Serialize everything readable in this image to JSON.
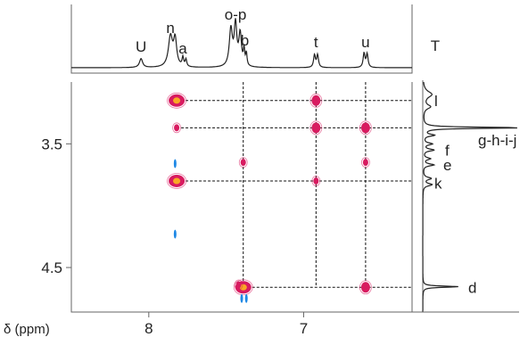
{
  "chart_data": {
    "type": "2D NMR spectrum",
    "axis_title": "δ (ppm)",
    "x_axis": {
      "ticks": [
        "8",
        "7"
      ],
      "tick_values": [
        8.0,
        7.0
      ],
      "range": [
        8.5,
        6.3
      ],
      "reversed": true
    },
    "y_axis": {
      "ticks": [
        "3.5",
        "4.5"
      ],
      "tick_values": [
        3.5,
        4.5
      ],
      "range": [
        3.0,
        4.86
      ],
      "reversed": true
    },
    "top_projection_labels": [
      {
        "text": "U",
        "ppm": 8.05
      },
      {
        "text": "n",
        "ppm": 7.86
      },
      {
        "text": "a",
        "ppm": 7.78
      },
      {
        "text": "o-p",
        "ppm": 7.44
      },
      {
        "text": "b",
        "ppm": 7.38
      },
      {
        "text": "t",
        "ppm": 6.92
      },
      {
        "text": "u",
        "ppm": 6.6
      },
      {
        "text": "T",
        "ppm": 6.15
      }
    ],
    "right_projection_labels": [
      {
        "text": "l",
        "ppm": 3.15
      },
      {
        "text": "g-h-i-j",
        "ppm": 3.47
      },
      {
        "text": "f",
        "ppm": 3.55
      },
      {
        "text": "e",
        "ppm": 3.67
      },
      {
        "text": "k",
        "ppm": 3.82
      },
      {
        "text": "d",
        "ppm": 4.66
      }
    ],
    "cross_peaks": [
      {
        "x": 7.82,
        "y": 3.15,
        "intensity": "strong"
      },
      {
        "x": 7.82,
        "y": 3.37,
        "intensity": "weak"
      },
      {
        "x": 7.82,
        "y": 3.8,
        "intensity": "strong"
      },
      {
        "x": 6.92,
        "y": 3.15,
        "intensity": "medium"
      },
      {
        "x": 6.92,
        "y": 3.37,
        "intensity": "medium"
      },
      {
        "x": 6.6,
        "y": 3.37,
        "intensity": "medium"
      },
      {
        "x": 6.6,
        "y": 3.65,
        "intensity": "weak"
      },
      {
        "x": 7.39,
        "y": 3.65,
        "intensity": "weak"
      },
      {
        "x": 6.92,
        "y": 3.8,
        "intensity": "weak"
      },
      {
        "x": 7.39,
        "y": 4.66,
        "intensity": "strong"
      },
      {
        "x": 6.6,
        "y": 4.66,
        "intensity": "medium"
      },
      {
        "x": 7.42,
        "y": 4.64,
        "intensity": "weak"
      }
    ],
    "negative_peaks": [
      {
        "x": 7.83,
        "y": 3.66
      },
      {
        "x": 7.83,
        "y": 4.23
      },
      {
        "x": 7.4,
        "y": 4.75
      },
      {
        "x": 7.37,
        "y": 4.75
      }
    ],
    "guide_lines": {
      "vertical_ppm": [
        7.39,
        6.92,
        6.6
      ],
      "horizontal_ppm": [
        3.15,
        3.37,
        3.8,
        4.66
      ],
      "horizontal_from_ppm": 7.82,
      "vertical_from_ppm": 3.15
    },
    "colors": {
      "positive": "#d81b60",
      "positive_core": "#f9a825",
      "negative": "#1e88e5",
      "spectrum": "#222222",
      "frame": "#666666",
      "guide": "#111111"
    }
  }
}
